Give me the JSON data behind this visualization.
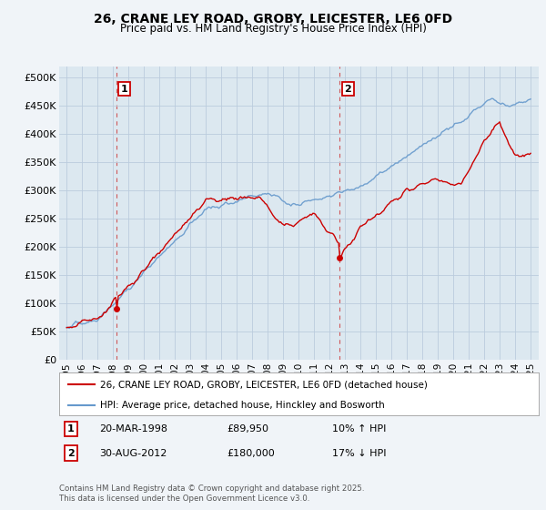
{
  "title": "26, CRANE LEY ROAD, GROBY, LEICESTER, LE6 0FD",
  "subtitle": "Price paid vs. HM Land Registry's House Price Index (HPI)",
  "ylabel_ticks": [
    "£0",
    "£50K",
    "£100K",
    "£150K",
    "£200K",
    "£250K",
    "£300K",
    "£350K",
    "£400K",
    "£450K",
    "£500K"
  ],
  "ytick_vals": [
    0,
    50000,
    100000,
    150000,
    200000,
    250000,
    300000,
    350000,
    400000,
    450000,
    500000
  ],
  "ylim": [
    0,
    520000
  ],
  "xlim_start": 1994.5,
  "xlim_end": 2025.5,
  "xticks": [
    1995,
    1996,
    1997,
    1998,
    1999,
    2000,
    2001,
    2002,
    2003,
    2004,
    2005,
    2006,
    2007,
    2008,
    2009,
    2010,
    2011,
    2012,
    2013,
    2014,
    2015,
    2016,
    2017,
    2018,
    2019,
    2020,
    2021,
    2022,
    2023,
    2024,
    2025
  ],
  "sale1_year": 1998.21,
  "sale1_price": 89950,
  "sale1_label": "1",
  "sale2_year": 2012.66,
  "sale2_price": 180000,
  "sale2_label": "2",
  "legend_line1": "26, CRANE LEY ROAD, GROBY, LEICESTER, LE6 0FD (detached house)",
  "legend_line2": "HPI: Average price, detached house, Hinckley and Bosworth",
  "annotation1_date": "20-MAR-1998",
  "annotation1_price": "£89,950",
  "annotation1_hpi": "10% ↑ HPI",
  "annotation2_date": "30-AUG-2012",
  "annotation2_price": "£180,000",
  "annotation2_hpi": "17% ↓ HPI",
  "footer": "Contains HM Land Registry data © Crown copyright and database right 2025.\nThis data is licensed under the Open Government Licence v3.0.",
  "bg_color": "#f0f4f8",
  "plot_bg_color": "#dce8f0",
  "red_color": "#cc0000",
  "blue_color": "#6699cc",
  "grid_color": "#bbccdd",
  "dashed_color": "#cc3333",
  "label_box_color": "#cc0000"
}
